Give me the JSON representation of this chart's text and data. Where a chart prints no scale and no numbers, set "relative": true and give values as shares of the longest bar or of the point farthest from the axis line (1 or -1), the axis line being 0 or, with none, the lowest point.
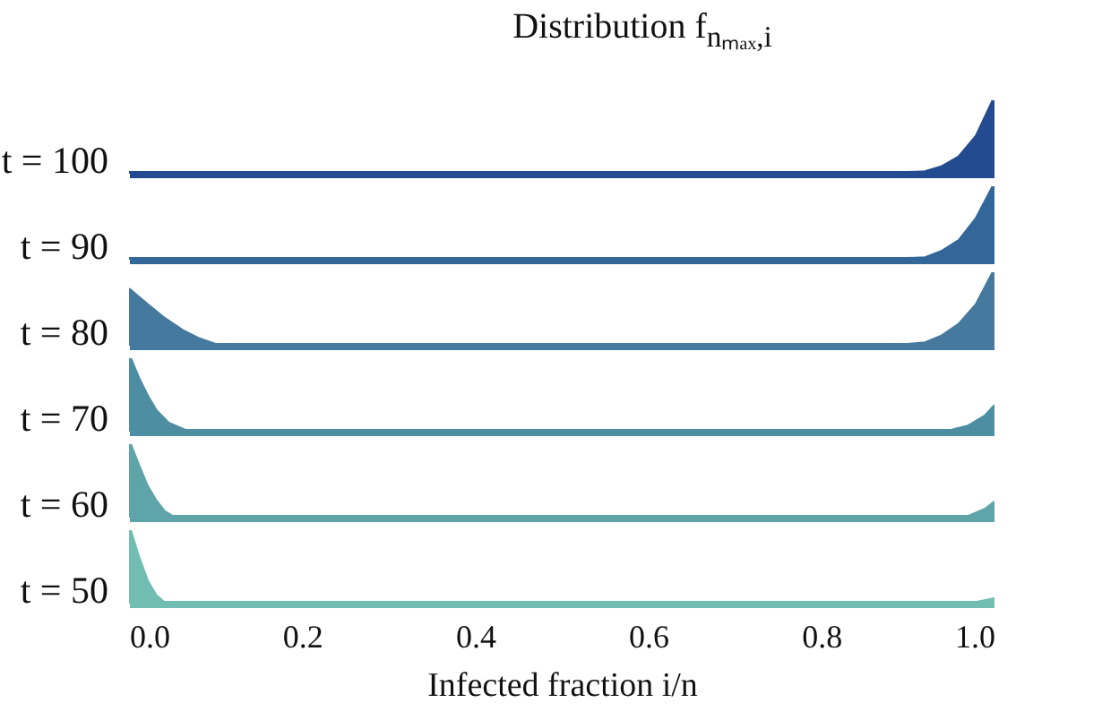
{
  "chart_data": [
    {
      "type": "area",
      "title": "Distribution f$_{nₘₐₓ,i}$",
      "ylabel": "t = 100",
      "relative": true,
      "xlim": [
        0,
        1
      ],
      "tick_labels": false,
      "series": [
        {
          "color": "#234b8f",
          "x": [
            0,
            0.9,
            0.92,
            0.94,
            0.96,
            0.98,
            1.0
          ],
          "values": [
            0,
            0,
            0.01,
            0.08,
            0.22,
            0.5,
            1
          ]
        }
      ]
    },
    {
      "type": "area",
      "ylabel": "t = 90",
      "relative": true,
      "xlim": [
        0,
        1
      ],
      "tick_labels": false,
      "series": [
        {
          "color": "#336699",
          "x": [
            0,
            0.9,
            0.92,
            0.94,
            0.96,
            0.98,
            1.0
          ],
          "values": [
            0,
            0,
            0.01,
            0.1,
            0.25,
            0.55,
            1
          ]
        }
      ]
    },
    {
      "type": "area",
      "ylabel": "t = 80",
      "relative": true,
      "xlim": [
        0,
        1
      ],
      "tick_labels": false,
      "series": [
        {
          "color": "#457a9e",
          "x": [
            0,
            0.02,
            0.04,
            0.06,
            0.08,
            0.1,
            0.9,
            0.92,
            0.94,
            0.96,
            0.98,
            1.0
          ],
          "values": [
            0.75,
            0.55,
            0.36,
            0.2,
            0.08,
            0,
            0,
            0.02,
            0.12,
            0.28,
            0.55,
            1
          ]
        }
      ]
    },
    {
      "type": "area",
      "ylabel": "t = 70",
      "relative": true,
      "xlim": [
        0,
        1
      ],
      "tick_labels": false,
      "series": [
        {
          "color": "#4e8ea2",
          "x": [
            0,
            0.01,
            0.02,
            0.03,
            0.045,
            0.065,
            0.95,
            0.97,
            0.99,
            1.0
          ],
          "values": [
            1,
            0.72,
            0.48,
            0.28,
            0.1,
            0,
            0,
            0.06,
            0.2,
            0.33
          ]
        }
      ]
    },
    {
      "type": "area",
      "ylabel": "t = 60",
      "relative": true,
      "xlim": [
        0,
        1
      ],
      "tick_labels": false,
      "series": [
        {
          "color": "#5ea4a9",
          "x": [
            0,
            0.01,
            0.02,
            0.03,
            0.04,
            0.05,
            0.97,
            0.99,
            1.0
          ],
          "values": [
            1,
            0.7,
            0.42,
            0.22,
            0.07,
            0,
            0,
            0.1,
            0.19
          ]
        }
      ]
    },
    {
      "type": "area",
      "xlabel": "Infected fraction i/n",
      "ylabel": "t = 50",
      "relative": true,
      "xlim": [
        0,
        1
      ],
      "xticks": [
        {
          "value": 0,
          "label": "0.0"
        },
        0.2,
        0.4,
        0.6,
        0.8,
        {
          "value": 1,
          "label": "1.0"
        }
      ],
      "tick_labels": "x",
      "series": [
        {
          "color": "#72bdb2",
          "x": [
            0,
            0.01,
            0.02,
            0.03,
            0.04,
            0.98,
            1.0
          ],
          "values": [
            1,
            0.62,
            0.3,
            0.1,
            0,
            0,
            0.05
          ]
        }
      ]
    }
  ]
}
